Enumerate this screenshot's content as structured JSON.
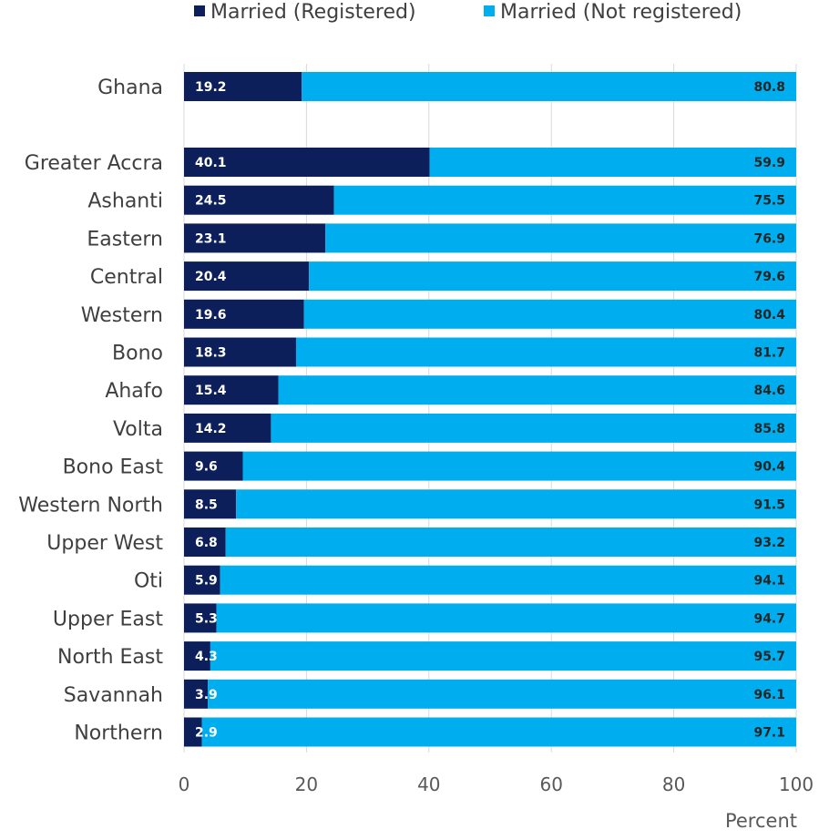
{
  "chart_data": {
    "type": "bar",
    "orientation": "horizontal",
    "stacked": true,
    "categories": [
      "Ghana",
      "Greater Accra",
      "Ashanti",
      "Eastern",
      "Central",
      "Western",
      "Bono",
      "Ahafo",
      "Volta",
      "Bono East",
      "Western North",
      "Upper West",
      "Oti",
      "Upper East",
      "North East",
      "Savannah",
      "Northern"
    ],
    "series": [
      {
        "name": "Married (Registered)",
        "color": "#0c1f5b",
        "label_color": "#ffffff",
        "values": [
          19.2,
          40.1,
          24.5,
          23.1,
          20.4,
          19.6,
          18.3,
          15.4,
          14.2,
          9.6,
          8.5,
          6.8,
          5.9,
          5.3,
          4.3,
          3.9,
          2.9
        ]
      },
      {
        "name": "Married (Not registered)",
        "color": "#00aeef",
        "label_color": "#262626",
        "values": [
          80.8,
          59.9,
          75.5,
          76.9,
          79.6,
          80.4,
          81.7,
          84.6,
          85.8,
          90.4,
          91.5,
          93.2,
          94.1,
          94.7,
          95.7,
          96.1,
          97.1
        ]
      }
    ],
    "xlabel": "Percent",
    "ylabel": "",
    "xlim": [
      0,
      100
    ],
    "xticks": [
      0,
      20,
      40,
      60,
      80,
      100
    ],
    "grid": "vertical",
    "legend": "top"
  }
}
